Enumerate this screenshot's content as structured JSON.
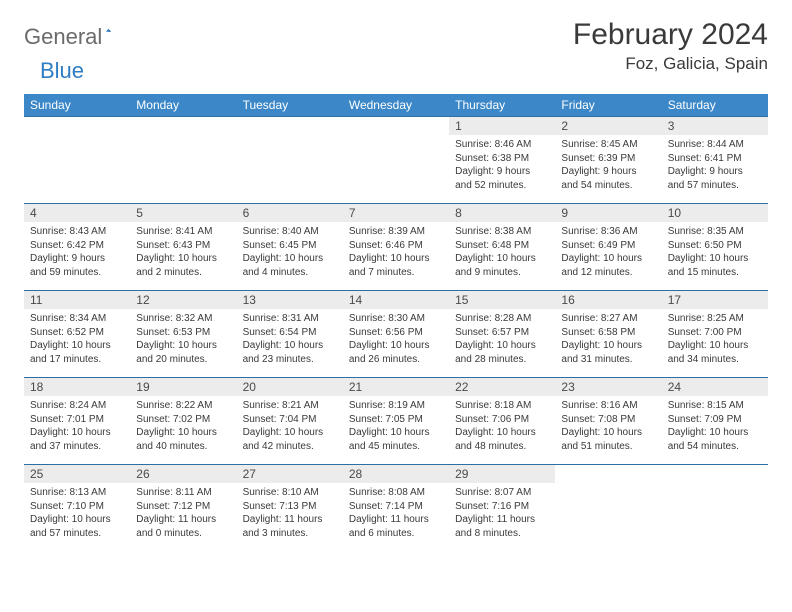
{
  "brand": {
    "text1": "General",
    "text2": "Blue"
  },
  "title": "February 2024",
  "subtitle": "Foz, Galicia, Spain",
  "colors": {
    "header_bg": "#3b87c8",
    "border": "#2f6da8",
    "daynum_bg": "#ececec",
    "text": "#3a3a3a",
    "logo_gray": "#6b6b6b",
    "logo_blue": "#2f7dc4"
  },
  "weekdays": [
    "Sunday",
    "Monday",
    "Tuesday",
    "Wednesday",
    "Thursday",
    "Friday",
    "Saturday"
  ],
  "weeks": [
    [
      null,
      null,
      null,
      null,
      {
        "n": "1",
        "sr": "8:46 AM",
        "ss": "6:38 PM",
        "dl": "9 hours and 52 minutes."
      },
      {
        "n": "2",
        "sr": "8:45 AM",
        "ss": "6:39 PM",
        "dl": "9 hours and 54 minutes."
      },
      {
        "n": "3",
        "sr": "8:44 AM",
        "ss": "6:41 PM",
        "dl": "9 hours and 57 minutes."
      }
    ],
    [
      {
        "n": "4",
        "sr": "8:43 AM",
        "ss": "6:42 PM",
        "dl": "9 hours and 59 minutes."
      },
      {
        "n": "5",
        "sr": "8:41 AM",
        "ss": "6:43 PM",
        "dl": "10 hours and 2 minutes."
      },
      {
        "n": "6",
        "sr": "8:40 AM",
        "ss": "6:45 PM",
        "dl": "10 hours and 4 minutes."
      },
      {
        "n": "7",
        "sr": "8:39 AM",
        "ss": "6:46 PM",
        "dl": "10 hours and 7 minutes."
      },
      {
        "n": "8",
        "sr": "8:38 AM",
        "ss": "6:48 PM",
        "dl": "10 hours and 9 minutes."
      },
      {
        "n": "9",
        "sr": "8:36 AM",
        "ss": "6:49 PM",
        "dl": "10 hours and 12 minutes."
      },
      {
        "n": "10",
        "sr": "8:35 AM",
        "ss": "6:50 PM",
        "dl": "10 hours and 15 minutes."
      }
    ],
    [
      {
        "n": "11",
        "sr": "8:34 AM",
        "ss": "6:52 PM",
        "dl": "10 hours and 17 minutes."
      },
      {
        "n": "12",
        "sr": "8:32 AM",
        "ss": "6:53 PM",
        "dl": "10 hours and 20 minutes."
      },
      {
        "n": "13",
        "sr": "8:31 AM",
        "ss": "6:54 PM",
        "dl": "10 hours and 23 minutes."
      },
      {
        "n": "14",
        "sr": "8:30 AM",
        "ss": "6:56 PM",
        "dl": "10 hours and 26 minutes."
      },
      {
        "n": "15",
        "sr": "8:28 AM",
        "ss": "6:57 PM",
        "dl": "10 hours and 28 minutes."
      },
      {
        "n": "16",
        "sr": "8:27 AM",
        "ss": "6:58 PM",
        "dl": "10 hours and 31 minutes."
      },
      {
        "n": "17",
        "sr": "8:25 AM",
        "ss": "7:00 PM",
        "dl": "10 hours and 34 minutes."
      }
    ],
    [
      {
        "n": "18",
        "sr": "8:24 AM",
        "ss": "7:01 PM",
        "dl": "10 hours and 37 minutes."
      },
      {
        "n": "19",
        "sr": "8:22 AM",
        "ss": "7:02 PM",
        "dl": "10 hours and 40 minutes."
      },
      {
        "n": "20",
        "sr": "8:21 AM",
        "ss": "7:04 PM",
        "dl": "10 hours and 42 minutes."
      },
      {
        "n": "21",
        "sr": "8:19 AM",
        "ss": "7:05 PM",
        "dl": "10 hours and 45 minutes."
      },
      {
        "n": "22",
        "sr": "8:18 AM",
        "ss": "7:06 PM",
        "dl": "10 hours and 48 minutes."
      },
      {
        "n": "23",
        "sr": "8:16 AM",
        "ss": "7:08 PM",
        "dl": "10 hours and 51 minutes."
      },
      {
        "n": "24",
        "sr": "8:15 AM",
        "ss": "7:09 PM",
        "dl": "10 hours and 54 minutes."
      }
    ],
    [
      {
        "n": "25",
        "sr": "8:13 AM",
        "ss": "7:10 PM",
        "dl": "10 hours and 57 minutes."
      },
      {
        "n": "26",
        "sr": "8:11 AM",
        "ss": "7:12 PM",
        "dl": "11 hours and 0 minutes."
      },
      {
        "n": "27",
        "sr": "8:10 AM",
        "ss": "7:13 PM",
        "dl": "11 hours and 3 minutes."
      },
      {
        "n": "28",
        "sr": "8:08 AM",
        "ss": "7:14 PM",
        "dl": "11 hours and 6 minutes."
      },
      {
        "n": "29",
        "sr": "8:07 AM",
        "ss": "7:16 PM",
        "dl": "11 hours and 8 minutes."
      },
      null,
      null
    ]
  ],
  "labels": {
    "sunrise": "Sunrise: ",
    "sunset": "Sunset: ",
    "daylight": "Daylight: "
  }
}
